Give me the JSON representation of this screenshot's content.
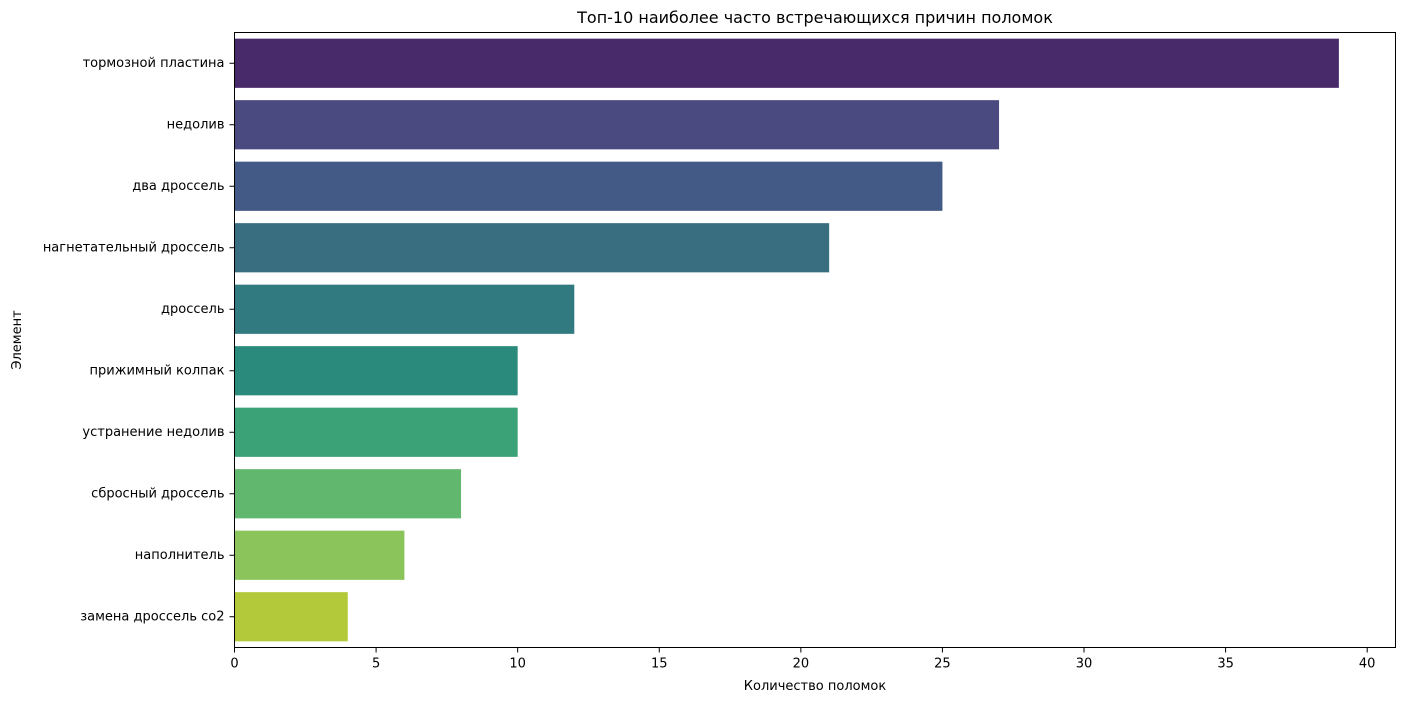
{
  "chart_data": {
    "type": "bar",
    "orientation": "horizontal",
    "title": "Топ-10 наиболее часто встречающихся причин поломок",
    "xlabel": "Количество поломок",
    "ylabel": "Элемент",
    "categories": [
      "тормозной пластина",
      "недолив",
      "два дроссель",
      "нагнетательный дроссель",
      "дроссель",
      "прижимный колпак",
      "устранение недолив",
      "сбросный дроссель",
      "наполнитель",
      "замена дроссель со2"
    ],
    "values": [
      39,
      27,
      25,
      21,
      12,
      10,
      10,
      8,
      6,
      4
    ],
    "colors": [
      "#482a6a",
      "#4a4a80",
      "#425a85",
      "#396d80",
      "#307a80",
      "#2a8b7d",
      "#3ba176",
      "#62b76e",
      "#8bc45a",
      "#b4c93a"
    ],
    "xlim": [
      0,
      41
    ],
    "xticks": [
      0,
      5,
      10,
      15,
      20,
      25,
      30,
      35,
      40
    ],
    "grid": false,
    "legend": "none"
  }
}
